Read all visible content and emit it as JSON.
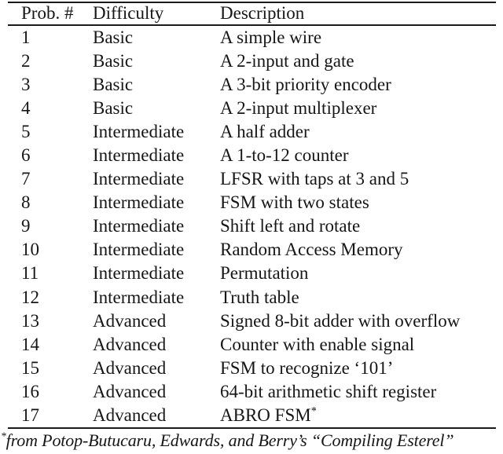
{
  "table": {
    "columns": [
      "Prob. #",
      "Difficulty",
      "Description"
    ],
    "rows": [
      {
        "num": "1",
        "difficulty": "Basic",
        "description": "A simple wire"
      },
      {
        "num": "2",
        "difficulty": "Basic",
        "description": "A 2-input and gate"
      },
      {
        "num": "3",
        "difficulty": "Basic",
        "description": "A 3-bit priority encoder"
      },
      {
        "num": "4",
        "difficulty": "Basic",
        "description": "A 2-input multiplexer"
      },
      {
        "num": "5",
        "difficulty": "Intermediate",
        "description": "A half adder"
      },
      {
        "num": "6",
        "difficulty": "Intermediate",
        "description": "A 1-to-12 counter"
      },
      {
        "num": "7",
        "difficulty": "Intermediate",
        "description": "LFSR with taps at 3 and 5"
      },
      {
        "num": "8",
        "difficulty": "Intermediate",
        "description": "FSM with two states"
      },
      {
        "num": "9",
        "difficulty": "Intermediate",
        "description": "Shift left and rotate"
      },
      {
        "num": "10",
        "difficulty": "Intermediate",
        "description": "Random Access Memory"
      },
      {
        "num": "11",
        "difficulty": "Intermediate",
        "description": "Permutation"
      },
      {
        "num": "12",
        "difficulty": "Intermediate",
        "description": "Truth table"
      },
      {
        "num": "13",
        "difficulty": "Advanced",
        "description": "Signed 8-bit adder with overflow"
      },
      {
        "num": "14",
        "difficulty": "Advanced",
        "description": "Counter with enable signal"
      },
      {
        "num": "15",
        "difficulty": "Advanced",
        "description": "FSM to recognize ‘101’"
      },
      {
        "num": "16",
        "difficulty": "Advanced",
        "description": "64-bit arithmetic shift register"
      },
      {
        "num": "17",
        "difficulty": "Advanced",
        "description": "ABRO FSM",
        "sup": "*"
      }
    ]
  },
  "footnote": {
    "marker": "*",
    "text": "from Potop-Butucaru, Edwards, and Berry’s “Compiling Esterel”"
  },
  "colors": {
    "text": "#161616",
    "rule": "#1b1b1b",
    "background": "#ffffff"
  }
}
